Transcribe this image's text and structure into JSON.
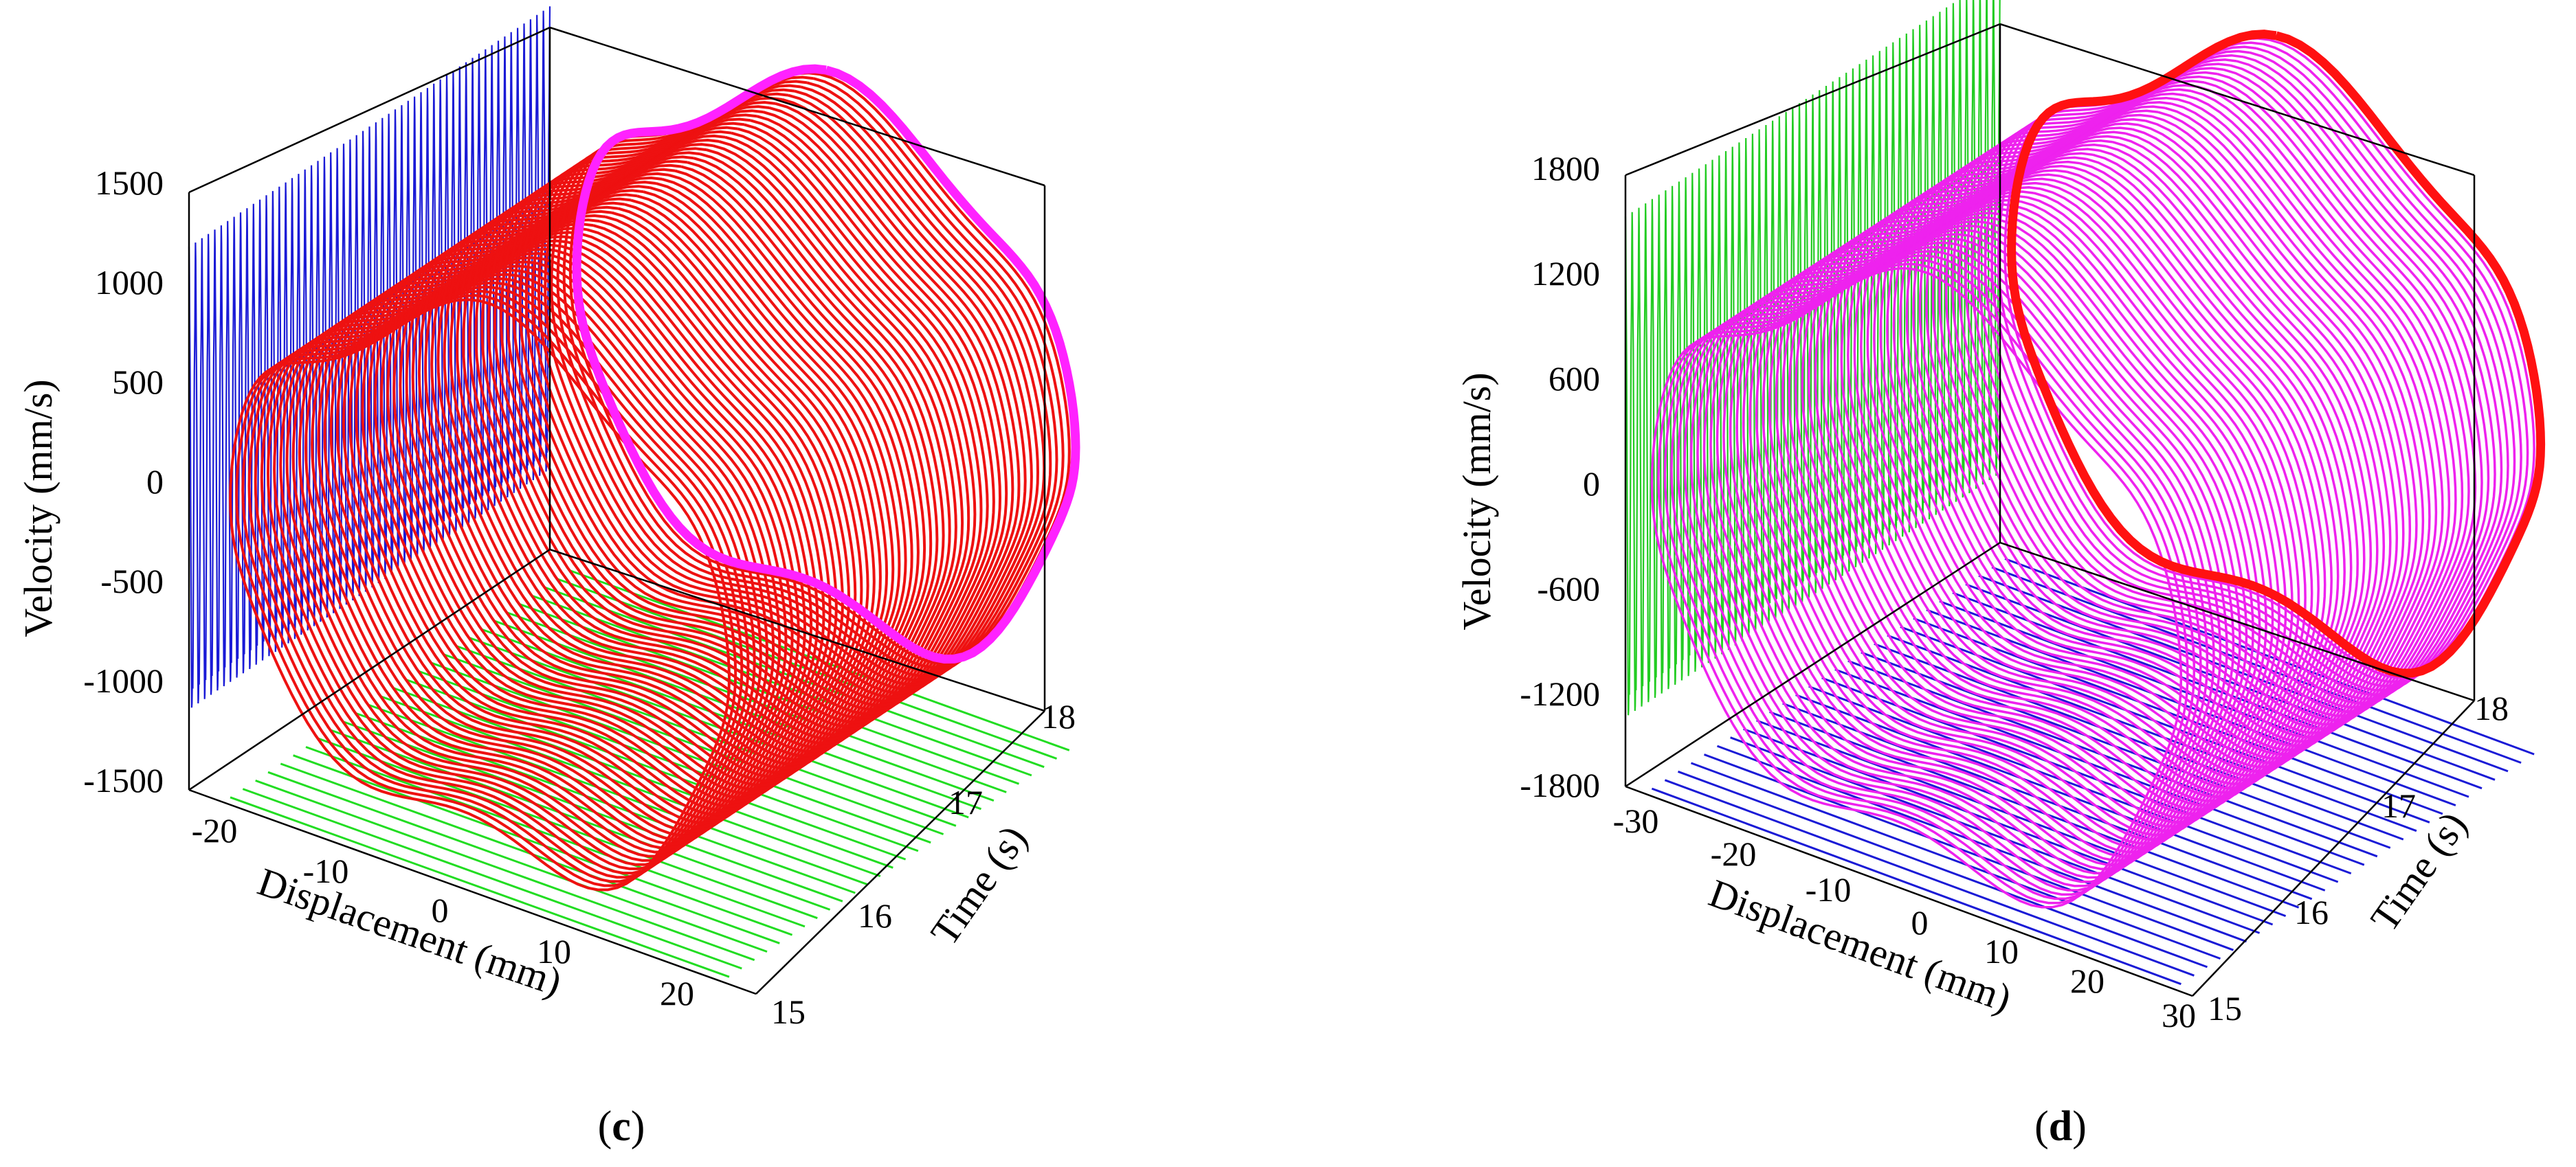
{
  "chart_data": [
    {
      "type": "line",
      "panel": "c",
      "caption_open": "(",
      "caption_letter": "c",
      "caption_close": ")",
      "xlabel": "Displacement (mm)",
      "ylabel": "Velocity (mm/s)",
      "zlabel": "Time (s)",
      "xlim": [
        -25,
        25
      ],
      "ylim": [
        -1500,
        1500
      ],
      "tlim": [
        15,
        18
      ],
      "xticks": [
        "-20",
        "-10",
        "0",
        "10",
        "20"
      ],
      "yticks": [
        "1500",
        "1000",
        "500",
        "0",
        "-500",
        "-1000",
        "-1500"
      ],
      "tticks": [
        "15",
        "16",
        "17",
        "18"
      ],
      "displacement_amplitude": 22,
      "velocity_amplitude": 1300,
      "trajectory_count": 56,
      "colors": {
        "trajectory": "#ee1111",
        "final_orbit": "#ff22ff",
        "wall_projection": "#1a1ad6",
        "floor_projection": "#22dd22"
      }
    },
    {
      "type": "line",
      "panel": "d",
      "caption_open": "(",
      "caption_letter": "d",
      "caption_close": ")",
      "xlabel": "Displacement (mm)",
      "ylabel": "Velocity (mm/s)",
      "zlabel": "Time (s)",
      "xlim": [
        -30,
        30
      ],
      "ylim": [
        -1800,
        1800
      ],
      "tlim": [
        15,
        18
      ],
      "xticks": [
        "-30",
        "-20",
        "-10",
        "0",
        "10",
        "20",
        "30"
      ],
      "yticks": [
        "1800",
        "1200",
        "600",
        "0",
        "-600",
        "-1200",
        "-1800"
      ],
      "tticks": [
        "15",
        "16",
        "17",
        "18"
      ],
      "displacement_amplitude": 28,
      "velocity_amplitude": 1650,
      "trajectory_count": 56,
      "colors": {
        "trajectory": "#ee22ee",
        "final_orbit": "#ff1111",
        "wall_projection": "#22cc22",
        "floor_projection": "#1a1ad6"
      }
    }
  ]
}
